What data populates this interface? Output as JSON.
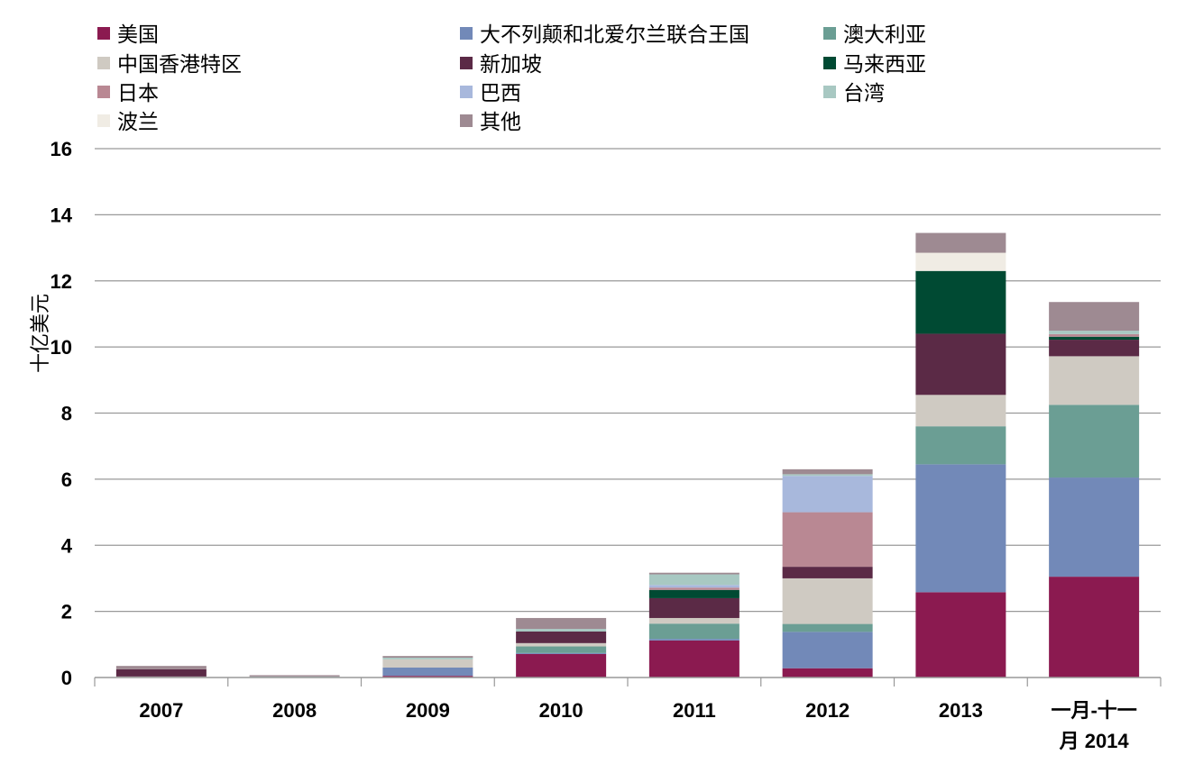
{
  "chart_data": {
    "type": "bar",
    "stacked": true,
    "ylabel": "十亿美元",
    "ylim": [
      0,
      16
    ],
    "yticks": [
      "0",
      "2",
      "4",
      "6",
      "8",
      "10",
      "12",
      "14",
      "16"
    ],
    "grid": true,
    "legend_placement": "top",
    "categories": [
      "2007",
      "2008",
      "2009",
      "2010",
      "2011",
      "2012",
      "2013",
      "一月-十一月 2014"
    ],
    "category_lines": [
      [
        "2007"
      ],
      [
        "2008"
      ],
      [
        "2009"
      ],
      [
        "2010"
      ],
      [
        "2011"
      ],
      [
        "2012"
      ],
      [
        "2013"
      ],
      [
        "一月-十一",
        "月 2014"
      ]
    ],
    "series": [
      {
        "name": "美国",
        "color": "#8B1A50",
        "values": [
          0,
          0,
          0.05,
          0.71,
          1.12,
          0.28,
          2.58,
          3.05
        ]
      },
      {
        "name": "大不列颠和北爱尔兰联合王国",
        "color": "#7289B8",
        "values": [
          0,
          0,
          0.25,
          0.03,
          0.05,
          1.1,
          3.87,
          3.0
        ]
      },
      {
        "name": "澳大利亚",
        "color": "#6B9E94",
        "values": [
          0,
          0,
          0,
          0.2,
          0.46,
          0.24,
          1.15,
          2.2
        ]
      },
      {
        "name": "中国香港特区",
        "color": "#CFCAC2",
        "values": [
          0.03,
          0,
          0.25,
          0.1,
          0.17,
          1.38,
          0.95,
          1.47
        ]
      },
      {
        "name": "新加坡",
        "color": "#5B2A46",
        "values": [
          0.22,
          0,
          0,
          0.35,
          0.6,
          0.35,
          1.85,
          0.5
        ]
      },
      {
        "name": "马来西亚",
        "color": "#004A33",
        "values": [
          0,
          0,
          0,
          0,
          0.25,
          0,
          1.9,
          0.09
        ]
      },
      {
        "name": "日本",
        "color": "#B98893",
        "values": [
          0,
          0,
          0,
          0,
          0.07,
          1.65,
          0,
          0.08
        ]
      },
      {
        "name": "巴西",
        "color": "#A8B8DC",
        "values": [
          0,
          0,
          0,
          0,
          0.08,
          1.1,
          0,
          0
        ]
      },
      {
        "name": "台湾",
        "color": "#A8C8C2",
        "values": [
          0,
          0.03,
          0.05,
          0.08,
          0.32,
          0.05,
          0,
          0.1
        ]
      },
      {
        "name": "波兰",
        "color": "#F0ECE4",
        "values": [
          0,
          0,
          0,
          0,
          0,
          0,
          0.55,
          0
        ]
      },
      {
        "name": "其他",
        "color": "#9E8A92",
        "values": [
          0.1,
          0.04,
          0.05,
          0.33,
          0.05,
          0.15,
          0.6,
          0.87
        ]
      }
    ]
  }
}
